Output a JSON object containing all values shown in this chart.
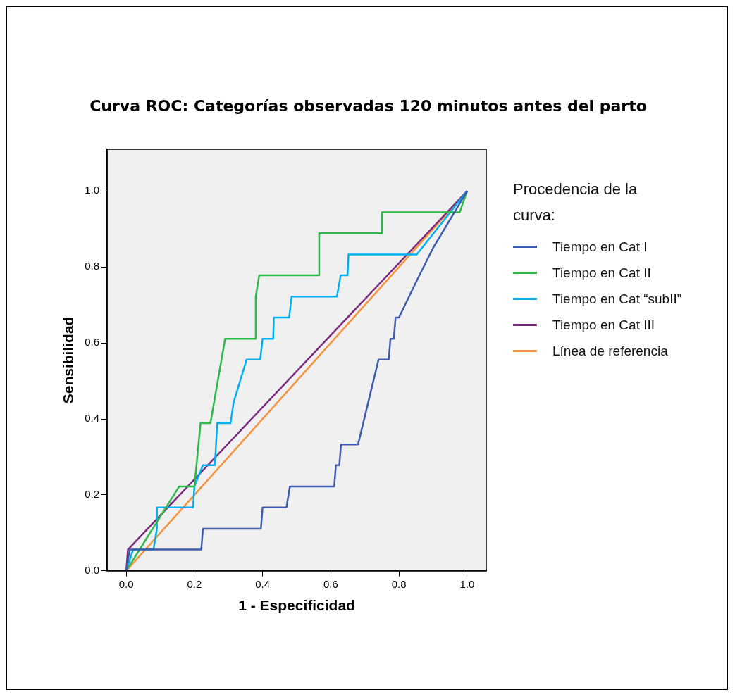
{
  "chart_data": {
    "type": "line",
    "title": "Curva ROC: Categorías observadas 120 minutos antes del parto",
    "xlabel": "1 - Especificidad",
    "ylabel": "Sensibilidad",
    "legend_title": "Procedencia de la curva:",
    "legend": "right",
    "grid": false,
    "marker": "none",
    "line_style": "solid",
    "xlim": [
      -0.056,
      1.056
    ],
    "ylim": [
      0,
      1.11
    ],
    "xticks": [
      {
        "value": 0,
        "label": "0.0"
      },
      {
        "value": 0.2,
        "label": "0.2"
      },
      {
        "value": 0.4,
        "label": "0.4"
      },
      {
        "value": 0.6,
        "label": "0.6"
      },
      {
        "value": 0.8,
        "label": "0.8"
      },
      {
        "value": 1,
        "label": "1.0"
      }
    ],
    "yticks": [
      {
        "value": 0,
        "label": "0.0"
      },
      {
        "value": 0.2,
        "label": "0.2"
      },
      {
        "value": 0.4,
        "label": "0.4"
      },
      {
        "value": 0.6,
        "label": "0.6"
      },
      {
        "value": 0.8,
        "label": "0.8"
      },
      {
        "value": 1,
        "label": "1.0"
      }
    ],
    "series": [
      {
        "name": "Tiempo en Cat I",
        "color": "#3f5bb0",
        "x": [
          0,
          0.01,
          0.22,
          0.225,
          0.395,
          0.4,
          0.47,
          0.48,
          0.61,
          0.615,
          0.625,
          0.63,
          0.68,
          0.74,
          0.77,
          0.775,
          0.785,
          0.79,
          0.8,
          0.85,
          0.9,
          1
        ],
        "values": [
          0,
          0.056,
          0.056,
          0.111,
          0.111,
          0.167,
          0.167,
          0.222,
          0.222,
          0.278,
          0.278,
          0.333,
          0.333,
          0.556,
          0.556,
          0.611,
          0.611,
          0.667,
          0.667,
          0.76,
          0.85,
          1
        ]
      },
      {
        "name": "Tiempo en Cat II",
        "color": "#2db84a",
        "x": [
          0,
          0.155,
          0.2,
          0.218,
          0.247,
          0.29,
          0.378,
          0.38,
          0.39,
          0.566,
          0.566,
          0.75,
          0.75,
          0.978,
          1
        ],
        "values": [
          0,
          0.222,
          0.222,
          0.389,
          0.389,
          0.611,
          0.611,
          0.722,
          0.778,
          0.778,
          0.889,
          0.889,
          0.944,
          0.944,
          1
        ]
      },
      {
        "name": "Tiempo en Cat “subII”",
        "color": "#00b0f0",
        "x": [
          0,
          0.02,
          0.08,
          0.09,
          0.09,
          0.196,
          0.2,
          0.225,
          0.26,
          0.267,
          0.306,
          0.315,
          0.353,
          0.393,
          0.4,
          0.431,
          0.433,
          0.478,
          0.485,
          0.618,
          0.629,
          0.649,
          0.652,
          0.852,
          1
        ],
        "values": [
          0,
          0.056,
          0.056,
          0.111,
          0.167,
          0.167,
          0.222,
          0.278,
          0.278,
          0.389,
          0.389,
          0.444,
          0.556,
          0.556,
          0.611,
          0.611,
          0.667,
          0.667,
          0.722,
          0.722,
          0.778,
          0.778,
          0.833,
          0.833,
          1
        ]
      },
      {
        "name": "Tiempo en Cat III",
        "color": "#7b2a7f",
        "x": [
          0,
          0.005,
          1
        ],
        "values": [
          0,
          0.056,
          1
        ]
      },
      {
        "name": "Línea de referencia",
        "color": "#f7923a",
        "x": [
          0,
          1
        ],
        "values": [
          0,
          1
        ]
      }
    ]
  }
}
